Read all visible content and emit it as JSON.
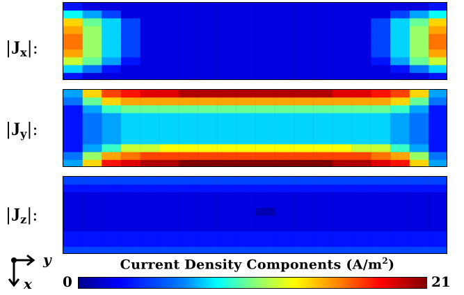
{
  "chart_data": [
    {
      "type": "heatmap",
      "name": "Jx",
      "label": "|Jx|:",
      "rows": 10,
      "cols": 20,
      "values": [
        [
          3,
          2,
          2,
          2,
          2,
          2,
          2,
          2,
          2,
          2,
          2,
          2,
          2,
          2,
          2,
          2,
          2,
          2,
          2,
          3
        ],
        [
          8,
          6,
          4,
          2,
          2,
          2,
          2,
          2,
          2,
          2,
          2,
          2,
          2,
          2,
          2,
          2,
          2,
          4,
          6,
          8
        ],
        [
          14,
          10,
          7,
          4,
          2,
          2,
          2,
          2,
          2,
          2,
          2,
          2,
          2,
          2,
          2,
          2,
          4,
          7,
          10,
          14
        ],
        [
          15,
          11,
          7,
          4,
          2,
          2,
          2,
          2,
          2,
          2,
          2,
          2,
          2,
          2,
          2,
          2,
          4,
          7,
          11,
          15
        ],
        [
          16,
          11,
          7,
          4,
          2,
          2,
          2,
          2,
          2,
          2,
          2,
          2,
          2,
          2,
          2,
          2,
          4,
          7,
          11,
          16
        ],
        [
          16,
          11,
          7,
          4,
          2,
          2,
          2,
          2,
          2,
          2,
          2,
          2,
          2,
          2,
          2,
          2,
          4,
          7,
          11,
          16
        ],
        [
          15,
          11,
          7,
          4,
          2,
          2,
          2,
          2,
          2,
          2,
          2,
          2,
          2,
          2,
          2,
          2,
          4,
          7,
          11,
          15
        ],
        [
          12,
          10,
          6,
          3,
          2,
          2,
          2,
          2,
          2,
          2,
          2,
          2,
          2,
          2,
          2,
          2,
          3,
          6,
          10,
          12
        ],
        [
          7,
          5,
          3,
          2,
          2,
          2,
          2,
          2,
          2,
          2,
          2,
          2,
          2,
          2,
          2,
          2,
          2,
          3,
          5,
          7
        ],
        [
          3,
          2,
          2,
          2,
          2,
          2,
          2,
          2,
          2,
          2,
          2,
          2,
          2,
          2,
          2,
          2,
          2,
          2,
          2,
          3
        ]
      ]
    },
    {
      "type": "heatmap",
      "name": "Jy",
      "label": "|Jy|:",
      "rows": 10,
      "cols": 20,
      "values": [
        [
          6,
          14,
          17,
          18,
          19,
          19,
          20,
          20,
          20,
          20,
          20,
          20,
          20,
          20,
          19,
          19,
          18,
          17,
          14,
          6
        ],
        [
          5,
          10,
          14,
          15,
          15,
          15,
          15,
          15,
          15,
          15,
          15,
          15,
          15,
          15,
          15,
          15,
          15,
          14,
          10,
          5
        ],
        [
          3,
          6,
          9,
          10,
          10,
          10,
          10,
          10,
          10,
          10,
          10,
          10,
          10,
          10,
          10,
          10,
          10,
          9,
          6,
          3
        ],
        [
          3,
          5,
          6,
          7,
          7,
          7,
          7,
          7,
          7,
          7,
          7,
          7,
          7,
          7,
          7,
          7,
          7,
          6,
          5,
          3
        ],
        [
          3,
          5,
          6,
          7,
          7,
          7,
          7,
          7,
          7,
          7,
          7,
          7,
          7,
          7,
          7,
          7,
          7,
          6,
          5,
          3
        ],
        [
          3,
          5,
          6,
          7,
          7,
          7,
          7,
          7,
          7,
          7,
          7,
          7,
          7,
          7,
          7,
          7,
          7,
          6,
          5,
          3
        ],
        [
          3,
          5,
          6,
          7,
          7,
          7,
          7,
          7,
          7,
          7,
          7,
          7,
          7,
          7,
          7,
          7,
          7,
          6,
          5,
          3
        ],
        [
          3,
          6,
          9,
          12,
          12,
          13,
          13,
          13,
          13,
          13,
          13,
          13,
          13,
          13,
          13,
          12,
          12,
          9,
          6,
          3
        ],
        [
          5,
          11,
          15,
          16,
          17,
          17,
          17,
          17,
          17,
          17,
          17,
          17,
          17,
          17,
          17,
          17,
          16,
          15,
          11,
          5
        ],
        [
          6,
          14,
          18,
          19,
          20,
          20,
          21,
          21,
          21,
          21,
          21,
          21,
          21,
          21,
          20,
          20,
          19,
          18,
          14,
          6
        ]
      ]
    },
    {
      "type": "heatmap",
      "name": "Jz",
      "label": "|Jz|:",
      "rows": 10,
      "cols": 20,
      "values": [
        [
          4,
          4,
          4,
          4,
          4,
          4,
          4,
          4,
          4,
          4,
          4,
          4,
          4,
          4,
          4,
          4,
          4,
          4,
          4,
          4
        ],
        [
          3,
          3,
          3,
          3,
          3,
          3,
          3,
          3,
          3,
          3,
          3,
          3,
          3,
          3,
          3,
          3,
          3,
          3,
          3,
          3
        ],
        [
          2,
          2,
          2,
          2,
          2,
          2,
          2,
          2,
          2,
          2,
          2,
          2,
          2,
          2,
          2,
          2,
          2,
          2,
          2,
          2
        ],
        [
          2,
          2,
          2,
          2,
          2,
          2,
          2,
          2,
          2,
          2,
          2,
          2,
          2,
          2,
          2,
          2,
          2,
          2,
          2,
          2
        ],
        [
          2,
          2,
          2,
          2,
          2,
          2,
          2,
          2,
          2,
          2,
          1,
          2,
          2,
          2,
          2,
          2,
          2,
          2,
          2,
          2
        ],
        [
          2,
          2,
          2,
          2,
          2,
          2,
          2,
          2,
          2,
          2,
          2,
          2,
          2,
          2,
          2,
          2,
          2,
          2,
          2,
          2
        ],
        [
          2,
          2,
          2,
          2,
          2,
          2,
          2,
          2,
          2,
          2,
          2,
          2,
          2,
          2,
          2,
          2,
          2,
          2,
          2,
          2
        ],
        [
          3,
          3,
          3,
          3,
          3,
          3,
          3,
          3,
          3,
          3,
          3,
          3,
          3,
          3,
          3,
          3,
          3,
          3,
          3,
          3
        ],
        [
          3,
          3,
          3,
          3,
          3,
          3,
          3,
          3,
          3,
          3,
          3,
          3,
          3,
          3,
          3,
          3,
          3,
          3,
          3,
          3
        ],
        [
          4,
          4,
          4,
          4,
          4,
          4,
          4,
          4,
          4,
          4,
          4,
          4,
          4,
          4,
          4,
          4,
          4,
          4,
          4,
          4
        ]
      ]
    }
  ],
  "colorbar": {
    "title": "Current Density Components (A/m",
    "title_sup": "2",
    "title_end": ")",
    "min": 0,
    "max": 21,
    "min_label": "0",
    "max_label": "21",
    "colormap": "jet"
  },
  "row_labels": {
    "jx_pre": "|",
    "jx_J": "J",
    "jx_sub": "x",
    "jx_post": "|:",
    "jy_pre": "|",
    "jy_J": "J",
    "jy_sub": "y",
    "jy_post": "|:",
    "jz_pre": "|",
    "jz_J": "J",
    "jz_sub": "z",
    "jz_post": "|:"
  },
  "axes_indicator": {
    "right": "y",
    "down": "x"
  }
}
